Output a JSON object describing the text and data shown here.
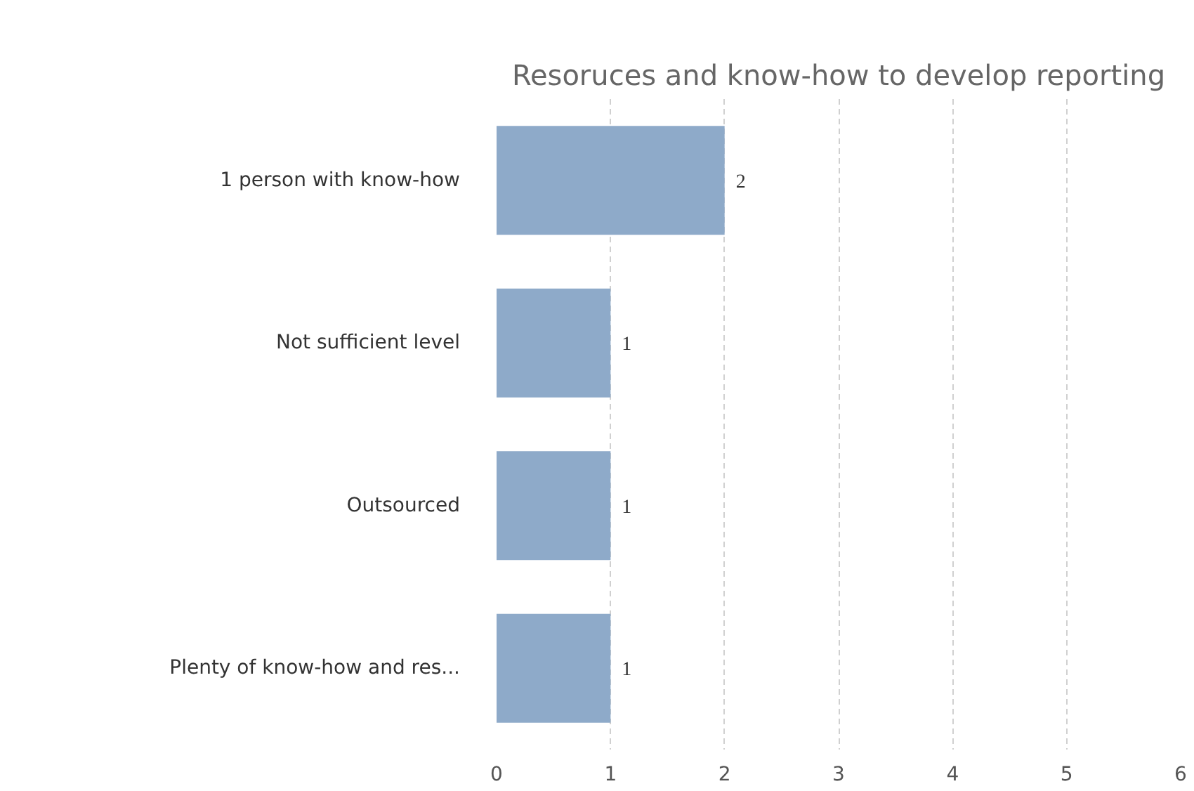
{
  "chart_data": {
    "type": "bar",
    "orientation": "horizontal",
    "title": "Resoruces and know-how to develop reporting",
    "categories": [
      "1 person with know-how",
      "Not sufficient level",
      "Outsourced",
      "Plenty of know-how and res..."
    ],
    "values": [
      2,
      1,
      1,
      1
    ],
    "color": "#8eaac9",
    "data_labels": true,
    "xlim": [
      0,
      6
    ],
    "xticks": [
      0,
      1,
      2,
      3,
      4,
      5,
      6
    ],
    "grid": "x"
  }
}
